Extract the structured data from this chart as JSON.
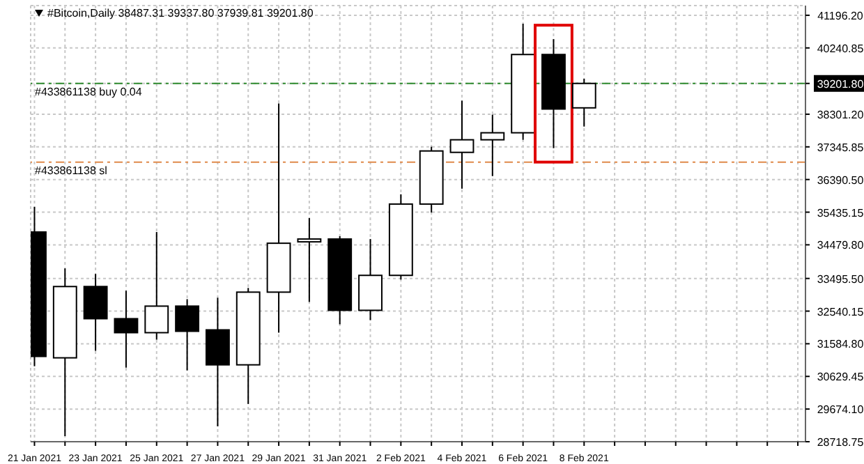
{
  "chart_data": {
    "type": "candlestick",
    "title": "#Bitcoin,Daily  38487.31 39337.80 37939.81 39201.80",
    "x": [
      "2021-01-21",
      "2021-01-22",
      "2021-01-23",
      "2021-01-24",
      "2021-01-25",
      "2021-01-26",
      "2021-01-27",
      "2021-01-28",
      "2021-01-29",
      "2021-01-30",
      "2021-01-31",
      "2021-02-01",
      "2021-02-02",
      "2021-02-03",
      "2021-02-04",
      "2021-02-05",
      "2021-02-06",
      "2021-02-07",
      "2021-02-08"
    ],
    "ohlc": [
      [
        34854,
        35590,
        30927,
        31214
      ],
      [
        31173,
        33790,
        28882,
        33259
      ],
      [
        33259,
        33627,
        31377,
        32318
      ],
      [
        32318,
        33136,
        30886,
        31909
      ],
      [
        31909,
        34854,
        31704,
        32686
      ],
      [
        32686,
        32890,
        30805,
        31950
      ],
      [
        31991,
        32931,
        29169,
        30968
      ],
      [
        30968,
        33218,
        29823,
        33095
      ],
      [
        33095,
        38616,
        31909,
        34526
      ],
      [
        34567,
        35263,
        32809,
        34649
      ],
      [
        34649,
        34731,
        32154,
        32563
      ],
      [
        32563,
        34649,
        32277,
        33586
      ],
      [
        33586,
        35958,
        33463,
        35672
      ],
      [
        35672,
        37349,
        35426,
        37226
      ],
      [
        37185,
        38698,
        36122,
        37553
      ],
      [
        37553,
        38289,
        36490,
        37758
      ],
      [
        37758,
        40948,
        37553,
        40048
      ],
      [
        40048,
        40498,
        37308,
        38453
      ],
      [
        38487.31,
        39337.8,
        37939.81,
        39201.8
      ]
    ],
    "xlim": [
      "2021-01-20T21:00",
      "2021-02-15T06:00"
    ],
    "xticks": [
      {
        "value": "2021-01-21",
        "label": "21 Jan 2021"
      },
      {
        "value": "2021-01-22",
        "label": null
      },
      {
        "value": "2021-01-23",
        "label": "23 Jan 2021"
      },
      {
        "value": "2021-01-24",
        "label": null
      },
      {
        "value": "2021-01-25",
        "label": "25 Jan 2021"
      },
      {
        "value": "2021-01-26",
        "label": null
      },
      {
        "value": "2021-01-27",
        "label": "27 Jan 2021"
      },
      {
        "value": "2021-01-28",
        "label": null
      },
      {
        "value": "2021-01-29",
        "label": "29 Jan 2021"
      },
      {
        "value": "2021-01-30",
        "label": null
      },
      {
        "value": "2021-01-31",
        "label": "31 Jan 2021"
      },
      {
        "value": "2021-02-01",
        "label": null
      },
      {
        "value": "2021-02-02",
        "label": "2 Feb 2021"
      },
      {
        "value": "2021-02-03",
        "label": null
      },
      {
        "value": "2021-02-04",
        "label": "4 Feb 2021"
      },
      {
        "value": "2021-02-05",
        "label": null
      },
      {
        "value": "2021-02-06",
        "label": "6 Feb 2021"
      },
      {
        "value": "2021-02-07",
        "label": null
      },
      {
        "value": "2021-02-08",
        "label": "8 Feb 2021"
      },
      {
        "value": "2021-02-09",
        "label": null
      },
      {
        "value": "2021-02-10",
        "label": null
      },
      {
        "value": "2021-02-11",
        "label": null
      },
      {
        "value": "2021-02-12",
        "label": null
      },
      {
        "value": "2021-02-13",
        "label": null
      },
      {
        "value": "2021-02-14",
        "label": null
      },
      {
        "value": "2021-02-15",
        "label": null
      }
    ],
    "ylim": [
      28718.75,
      41480
    ],
    "yticks": [
      {
        "value": 28718.75,
        "label": "28718.75"
      },
      {
        "value": 29674.1,
        "label": "29674.10"
      },
      {
        "value": 30629.45,
        "label": "30629.45"
      },
      {
        "value": 31584.8,
        "label": "31584.80"
      },
      {
        "value": 32540.15,
        "label": "32540.15"
      },
      {
        "value": 33495.5,
        "label": "33495.50"
      },
      {
        "value": 34479.8,
        "label": "34479.80"
      },
      {
        "value": 35435.15,
        "label": "35435.15"
      },
      {
        "value": 36390.5,
        "label": "36390.50"
      },
      {
        "value": 37345.85,
        "label": "37345.85"
      },
      {
        "value": 38301.2,
        "label": "38301.20"
      },
      {
        "value": 39201.8,
        "label": "39201.80"
      },
      {
        "value": 40240.85,
        "label": "40240.85"
      },
      {
        "value": 41196.2,
        "label": "41196.20"
      }
    ],
    "ref_lines": [
      {
        "axis": "y",
        "value": 39201.8,
        "label": "#433861138 buy 0.04",
        "color": "#2e8b2e",
        "line_style": "dashed"
      },
      {
        "axis": "y",
        "value": 36899,
        "label": "#433861138 sl",
        "color": "#e0894a",
        "line_style": "dashed"
      }
    ],
    "grid": true
  }
}
